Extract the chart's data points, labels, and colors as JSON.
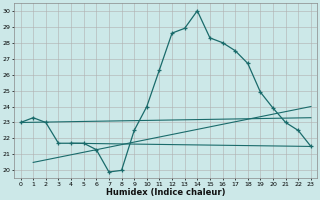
{
  "xlabel": "Humidex (Indice chaleur)",
  "bg_color": "#cce8e8",
  "grid_color": "#b0b0b0",
  "line_color": "#1a6b6b",
  "xlim": [
    -0.5,
    23.5
  ],
  "ylim": [
    19.5,
    30.5
  ],
  "x_ticks": [
    0,
    1,
    2,
    3,
    4,
    5,
    6,
    7,
    8,
    9,
    10,
    11,
    12,
    13,
    14,
    15,
    16,
    17,
    18,
    19,
    20,
    21,
    22,
    23
  ],
  "y_ticks": [
    20,
    21,
    22,
    23,
    24,
    25,
    26,
    27,
    28,
    29,
    30
  ],
  "main_series_x": [
    0,
    1,
    2,
    3,
    4,
    5,
    6,
    7,
    8,
    9,
    10,
    11,
    12,
    13,
    14,
    15,
    16,
    17,
    18,
    19,
    20,
    21,
    22,
    23
  ],
  "main_series_y": [
    23.0,
    23.3,
    23.0,
    21.7,
    21.7,
    21.7,
    21.3,
    19.9,
    20.0,
    22.5,
    24.0,
    26.3,
    28.6,
    28.9,
    30.0,
    28.3,
    28.0,
    27.5,
    26.7,
    24.9,
    23.9,
    23.0,
    22.5,
    21.5
  ],
  "trend1_x": [
    0,
    23
  ],
  "trend1_y": [
    23.0,
    23.3
  ],
  "trend2_x": [
    4,
    23
  ],
  "trend2_y": [
    21.7,
    21.5
  ],
  "trend3_x": [
    1,
    23
  ],
  "trend3_y": [
    20.5,
    24.0
  ]
}
